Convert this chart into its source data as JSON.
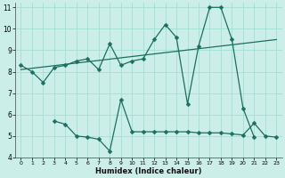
{
  "line1_x": [
    0,
    1,
    2,
    3,
    4,
    5,
    6,
    7,
    8,
    9,
    10,
    11,
    12,
    13,
    14,
    15,
    16,
    17,
    18,
    19,
    20,
    21
  ],
  "line1_y": [
    8.3,
    8.0,
    7.5,
    8.2,
    8.3,
    8.5,
    8.6,
    8.1,
    9.3,
    8.3,
    8.5,
    8.6,
    9.5,
    10.2,
    9.6,
    6.5,
    9.2,
    11.0,
    11.0,
    9.5,
    6.3,
    4.95
  ],
  "line2_x": [
    3,
    4,
    5,
    6,
    7,
    8,
    9,
    10,
    11,
    12,
    13,
    14,
    15,
    16,
    17,
    18,
    19,
    20,
    21,
    22,
    23
  ],
  "line2_y": [
    5.7,
    5.55,
    5.0,
    4.95,
    4.85,
    4.3,
    6.7,
    5.2,
    5.2,
    5.2,
    5.2,
    5.2,
    5.2,
    5.15,
    5.15,
    5.15,
    5.1,
    5.05,
    5.6,
    5.0,
    4.95
  ],
  "line3_x": [
    0,
    23
  ],
  "line3_y": [
    8.1,
    9.5
  ],
  "bg_color": "#cceee8",
  "grid_color": "#99ddcc",
  "line_color": "#1a7060",
  "xlim": [
    -0.5,
    23.5
  ],
  "ylim": [
    4,
    11.2
  ],
  "yticks": [
    4,
    5,
    6,
    7,
    8,
    9,
    10,
    11
  ],
  "xticks": [
    0,
    1,
    2,
    3,
    4,
    5,
    6,
    7,
    8,
    9,
    10,
    11,
    12,
    13,
    14,
    15,
    16,
    17,
    18,
    19,
    20,
    21,
    22,
    23
  ],
  "xlabel": "Humidex (Indice chaleur)",
  "marker_size": 2.5,
  "line_width": 0.9
}
